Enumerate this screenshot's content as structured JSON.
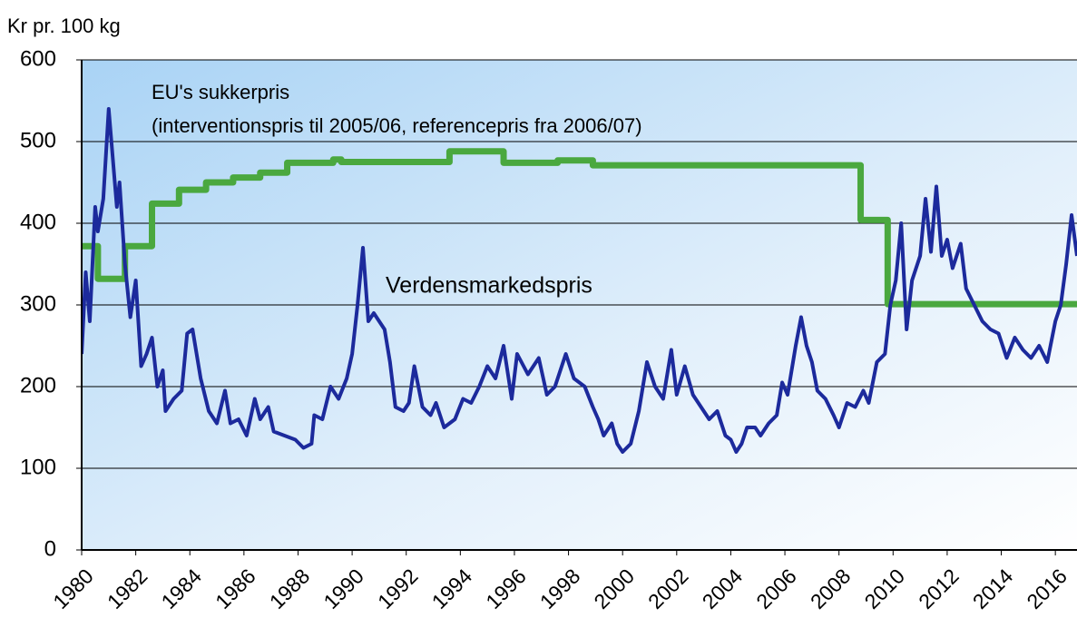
{
  "chart_data": {
    "type": "line",
    "y_label": "Kr pr. 100 kg",
    "annotations": [
      "(interventionspris til 2005/06, referencepris fra 2006/07)"
    ],
    "xlim": [
      1980,
      2016.8
    ],
    "ylim": [
      0,
      600
    ],
    "xticks": [
      1980,
      1982,
      1984,
      1986,
      1988,
      1990,
      1992,
      1994,
      1996,
      1998,
      2000,
      2002,
      2004,
      2006,
      2008,
      2010,
      2012,
      2014,
      2016
    ],
    "yticks": [
      0,
      100,
      200,
      300,
      400,
      500,
      600
    ],
    "grid": true,
    "series": [
      {
        "name": "EU's sukkerpris",
        "color": "#4aa83f",
        "x": [
          1980,
          1980.6,
          1980.6,
          1981.6,
          1981.6,
          1982.6,
          1982.6,
          1983.6,
          1983.6,
          1984.6,
          1984.6,
          1985.6,
          1985.6,
          1986.6,
          1986.6,
          1987.6,
          1987.6,
          1989.3,
          1989.3,
          1989.6,
          1989.6,
          1993.6,
          1993.6,
          1995.6,
          1995.6,
          1997.6,
          1997.6,
          1998.9,
          1998.9,
          2008.8,
          2008.8,
          2009.8,
          2009.8,
          2016.8
        ],
        "values": [
          372,
          372,
          332,
          332,
          372,
          372,
          424,
          424,
          441,
          441,
          450,
          450,
          456,
          456,
          462,
          462,
          474,
          474,
          478,
          478,
          475,
          475,
          488,
          488,
          474,
          474,
          477,
          477,
          471,
          471,
          404,
          404,
          301,
          301
        ]
      },
      {
        "name": "Verdensmarkedspris",
        "color": "#1c2a9c",
        "x": [
          1980.0,
          1980.15,
          1980.3,
          1980.5,
          1980.6,
          1980.8,
          1981.0,
          1981.15,
          1981.3,
          1981.4,
          1981.6,
          1981.8,
          1982.0,
          1982.2,
          1982.4,
          1982.6,
          1982.8,
          1983.0,
          1983.1,
          1983.4,
          1983.7,
          1983.9,
          1984.1,
          1984.4,
          1984.7,
          1985.0,
          1985.3,
          1985.5,
          1985.8,
          1986.1,
          1986.4,
          1986.6,
          1986.9,
          1987.1,
          1987.5,
          1987.9,
          1988.2,
          1988.5,
          1988.6,
          1988.9,
          1989.2,
          1989.5,
          1989.8,
          1990.0,
          1990.2,
          1990.4,
          1990.6,
          1990.8,
          1991.2,
          1991.4,
          1991.6,
          1991.9,
          1992.1,
          1992.3,
          1992.6,
          1992.9,
          1993.1,
          1993.4,
          1993.8,
          1994.1,
          1994.4,
          1994.7,
          1995.0,
          1995.3,
          1995.6,
          1995.9,
          1996.1,
          1996.5,
          1996.9,
          1997.2,
          1997.5,
          1997.9,
          1998.2,
          1998.6,
          1998.9,
          1999.1,
          1999.3,
          1999.6,
          1999.8,
          2000.0,
          2000.3,
          2000.6,
          2000.9,
          2001.2,
          2001.5,
          2001.8,
          2002.0,
          2002.3,
          2002.6,
          2002.9,
          2003.2,
          2003.5,
          2003.8,
          2004.0,
          2004.2,
          2004.4,
          2004.6,
          2004.9,
          2005.1,
          2005.4,
          2005.7,
          2005.9,
          2006.1,
          2006.4,
          2006.6,
          2006.8,
          2007.0,
          2007.2,
          2007.5,
          2007.8,
          2008.0,
          2008.3,
          2008.6,
          2008.9,
          2009.1,
          2009.4,
          2009.7,
          2009.9,
          2010.1,
          2010.3,
          2010.5,
          2010.7,
          2011.0,
          2011.2,
          2011.4,
          2011.6,
          2011.8,
          2012.0,
          2012.2,
          2012.5,
          2012.7,
          2013.0,
          2013.3,
          2013.6,
          2013.9,
          2014.2,
          2014.5,
          2014.8,
          2015.1,
          2015.4,
          2015.7,
          2016.0,
          2016.2,
          2016.4,
          2016.6,
          2016.8
        ],
        "values": [
          240,
          340,
          280,
          420,
          390,
          430,
          540,
          480,
          420,
          450,
          350,
          285,
          330,
          225,
          240,
          260,
          200,
          220,
          170,
          185,
          195,
          265,
          270,
          210,
          170,
          155,
          195,
          155,
          160,
          140,
          185,
          160,
          175,
          145,
          140,
          135,
          125,
          130,
          165,
          160,
          200,
          185,
          210,
          240,
          300,
          370,
          280,
          290,
          270,
          230,
          175,
          170,
          180,
          225,
          175,
          165,
          180,
          150,
          160,
          185,
          180,
          200,
          225,
          210,
          250,
          185,
          240,
          215,
          235,
          190,
          200,
          240,
          210,
          200,
          175,
          160,
          140,
          155,
          130,
          120,
          130,
          170,
          230,
          200,
          185,
          245,
          190,
          225,
          190,
          175,
          160,
          170,
          140,
          135,
          120,
          130,
          150,
          150,
          140,
          155,
          165,
          205,
          190,
          250,
          285,
          250,
          230,
          195,
          185,
          165,
          150,
          180,
          175,
          195,
          180,
          230,
          240,
          300,
          330,
          400,
          270,
          330,
          360,
          430,
          365,
          445,
          360,
          380,
          345,
          375,
          320,
          300,
          280,
          270,
          265,
          235,
          260,
          245,
          235,
          250,
          230,
          280,
          300,
          350,
          410,
          360
        ]
      }
    ]
  }
}
